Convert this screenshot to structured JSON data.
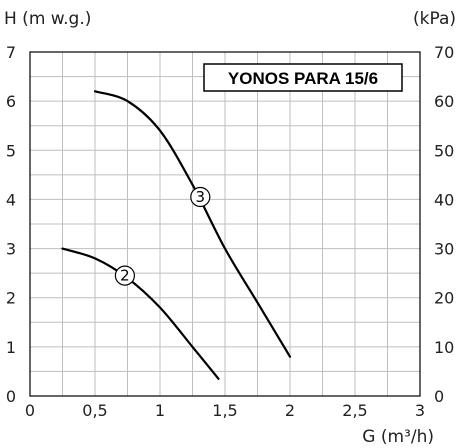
{
  "chart_data": {
    "type": "line",
    "title": "YONOS PARA 15/6",
    "xlabel": "G (m³/h)",
    "ylabel": "H (m w.g.)",
    "y2label": "(kPa)",
    "xlim": [
      0,
      3
    ],
    "ylim": [
      0,
      7
    ],
    "y2lim": [
      0,
      70
    ],
    "xticks": [
      "0",
      "0,5",
      "1",
      "1,5",
      "2",
      "2,5",
      "3"
    ],
    "yticks": [
      "0",
      "1",
      "2",
      "3",
      "4",
      "5",
      "6",
      "7"
    ],
    "y2ticks": [
      "0",
      "10",
      "20",
      "30",
      "40",
      "50",
      "60",
      "70"
    ],
    "grid": true,
    "series": [
      {
        "name": "2",
        "x": [
          0.25,
          0.5,
          0.75,
          1.0,
          1.25,
          1.45
        ],
        "y": [
          3.0,
          2.8,
          2.4,
          1.8,
          1.0,
          0.35
        ]
      },
      {
        "name": "3",
        "x": [
          0.5,
          0.75,
          1.0,
          1.25,
          1.5,
          1.75,
          2.0
        ],
        "y": [
          6.2,
          6.0,
          5.4,
          4.3,
          3.0,
          1.9,
          0.8
        ]
      }
    ]
  },
  "colors": {
    "grid": "#bfbfbf",
    "axis": "#000000",
    "curve": "#000000",
    "text": "#222222"
  }
}
